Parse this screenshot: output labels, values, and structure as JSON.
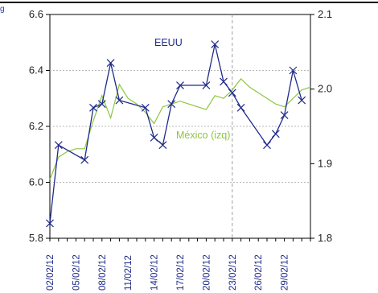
{
  "header": {
    "fragment": "g"
  },
  "chart_data": {
    "type": "line",
    "title": "",
    "xlabel": "",
    "ylabel_left": "",
    "ylabel_right": "",
    "x_tick_labels": [
      "02/02/12",
      "05/02/12",
      "08/02/12",
      "11/02/12",
      "14/02/12",
      "17/02/12",
      "20/02/12",
      "23/02/12",
      "26/02/12",
      "29/02/12"
    ],
    "x_range_days": [
      0,
      30
    ],
    "left_axis": {
      "range": [
        5.8,
        6.6
      ],
      "ticks": [
        "5.8",
        "6.0",
        "6.2",
        "6.4",
        "6.6"
      ]
    },
    "right_axis": {
      "range": [
        1.8,
        2.1
      ],
      "ticks": [
        "1.8",
        "1.9",
        "2.0",
        "2.1"
      ]
    },
    "grid": {
      "horizontal": "dotted",
      "vertical_marker_day": 21
    },
    "series": [
      {
        "name": "EEUU",
        "axis": "right",
        "color": "#1f2a8a",
        "marker": "x",
        "x_days": [
          0,
          1,
          4,
          5,
          6,
          7,
          8,
          11,
          12,
          13,
          14,
          15,
          18,
          19,
          20,
          21,
          22,
          25,
          26,
          27,
          28,
          29
        ],
        "values": [
          1.82,
          1.925,
          1.905,
          1.975,
          1.98,
          2.035,
          1.985,
          1.975,
          1.935,
          1.925,
          1.98,
          2.005,
          2.005,
          2.06,
          2.01,
          1.995,
          1.975,
          1.925,
          1.94,
          1.965,
          2.025,
          1.985
        ]
      },
      {
        "name": "México (izq)",
        "axis": "left",
        "color": "#8dc63f",
        "marker": "none",
        "x_days": [
          0,
          1,
          2,
          3,
          4,
          5,
          6,
          7,
          8,
          9,
          10,
          11,
          12,
          13,
          14,
          15,
          16,
          17,
          18,
          19,
          20,
          21,
          22,
          23,
          24,
          25,
          26,
          27,
          28,
          29,
          30
        ],
        "values": [
          6.01,
          6.09,
          6.11,
          6.12,
          6.12,
          6.22,
          6.31,
          6.23,
          6.35,
          6.3,
          6.28,
          6.25,
          6.21,
          6.27,
          6.28,
          6.29,
          6.28,
          6.27,
          6.26,
          6.31,
          6.3,
          6.33,
          6.37,
          6.34,
          6.32,
          6.3,
          6.28,
          6.27,
          6.3,
          6.33,
          6.34
        ]
      }
    ]
  }
}
